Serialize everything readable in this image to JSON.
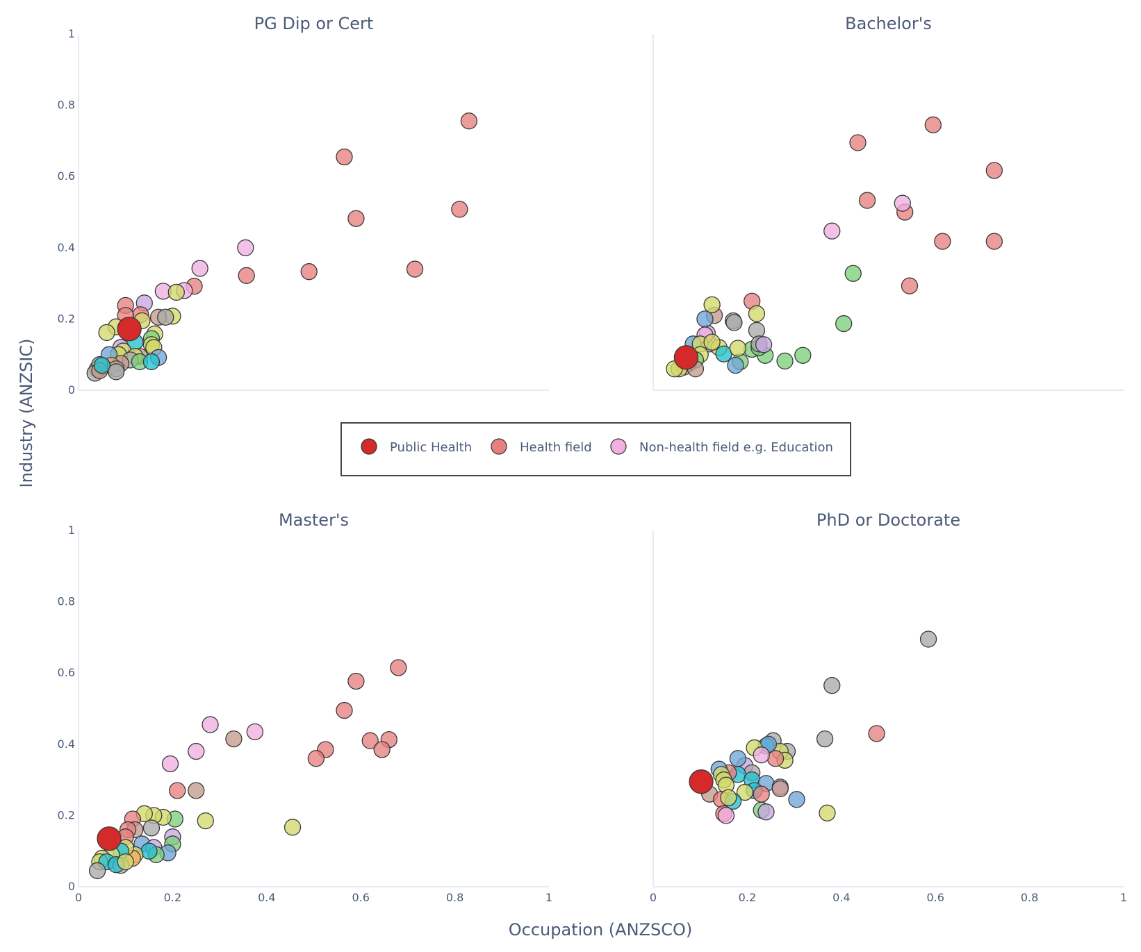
{
  "chart_data": {
    "type": "scatter",
    "ylabel": "Industry (ANZSIC)",
    "xlabel": "Occupation (ANZSCO)",
    "xlim": [
      0,
      1
    ],
    "ylim": [
      0,
      1
    ],
    "ticks": [
      "0",
      "0.2",
      "0.4",
      "0.6",
      "0.8",
      "1"
    ],
    "colors": {
      "public": "#d42a2a",
      "health": "#e88080",
      "nonhealth": "#f0b0e0",
      "yellow": "#d4d86a",
      "gray": "#aaaaaa",
      "blue": "#6ea6d8",
      "cyan": "#26c0d0",
      "green": "#7ccf7c",
      "brown": "#c49a8c",
      "purple": "#c8a8e0",
      "orange": "#f0a860"
    },
    "legend": [
      {
        "label": "Public Health",
        "color": "public"
      },
      {
        "label": "Health field",
        "color": "health"
      },
      {
        "label": "Non-health field e.g. Education",
        "color": "nonhealth"
      }
    ],
    "panels": [
      {
        "title": "PG Dip or Cert",
        "public_health": {
          "x": 0.108,
          "y": 0.172
        },
        "points": [
          [
            0.83,
            0.756,
            "health"
          ],
          [
            0.565,
            0.655,
            "health"
          ],
          [
            0.59,
            0.482,
            "health"
          ],
          [
            0.81,
            0.508,
            "health"
          ],
          [
            0.715,
            0.34,
            "health"
          ],
          [
            0.49,
            0.333,
            "health"
          ],
          [
            0.357,
            0.322,
            "health"
          ],
          [
            0.246,
            0.292,
            "health"
          ],
          [
            0.355,
            0.4,
            "nonhealth"
          ],
          [
            0.258,
            0.342,
            "nonhealth"
          ],
          [
            0.18,
            0.278,
            "nonhealth"
          ],
          [
            0.225,
            0.28,
            "nonhealth"
          ],
          [
            0.208,
            0.275,
            "yellow"
          ],
          [
            0.14,
            0.245,
            "purple"
          ],
          [
            0.1,
            0.238,
            "health"
          ],
          [
            0.132,
            0.212,
            "health"
          ],
          [
            0.1,
            0.21,
            "health"
          ],
          [
            0.2,
            0.208,
            "yellow"
          ],
          [
            0.17,
            0.205,
            "brown"
          ],
          [
            0.185,
            0.205,
            "gray"
          ],
          [
            0.135,
            0.195,
            "yellow"
          ],
          [
            0.08,
            0.178,
            "yellow"
          ],
          [
            0.06,
            0.162,
            "yellow"
          ],
          [
            0.162,
            0.158,
            "yellow"
          ],
          [
            0.155,
            0.145,
            "green"
          ],
          [
            0.155,
            0.128,
            "yellow"
          ],
          [
            0.12,
            0.135,
            "cyan"
          ],
          [
            0.16,
            0.12,
            "yellow"
          ],
          [
            0.09,
            0.12,
            "purple"
          ],
          [
            0.095,
            0.11,
            "yellow"
          ],
          [
            0.085,
            0.1,
            "yellow"
          ],
          [
            0.065,
            0.1,
            "blue"
          ],
          [
            0.13,
            0.095,
            "brown"
          ],
          [
            0.17,
            0.092,
            "blue"
          ],
          [
            0.12,
            0.095,
            "yellow"
          ],
          [
            0.11,
            0.085,
            "gray"
          ],
          [
            0.13,
            0.08,
            "green"
          ],
          [
            0.155,
            0.08,
            "cyan"
          ],
          [
            0.09,
            0.075,
            "brown"
          ],
          [
            0.07,
            0.07,
            "orange"
          ],
          [
            0.08,
            0.06,
            "gray"
          ],
          [
            0.04,
            0.06,
            "yellow"
          ],
          [
            0.05,
            0.065,
            "orange"
          ],
          [
            0.045,
            0.072,
            "gray"
          ],
          [
            0.035,
            0.048,
            "gray"
          ],
          [
            0.045,
            0.055,
            "brown"
          ],
          [
            0.05,
            0.07,
            "cyan"
          ],
          [
            0.08,
            0.052,
            "gray"
          ]
        ]
      },
      {
        "title": "Bachelor's",
        "public_health": {
          "x": 0.07,
          "y": 0.092
        },
        "points": [
          [
            0.595,
            0.745,
            "health"
          ],
          [
            0.435,
            0.695,
            "health"
          ],
          [
            0.725,
            0.617,
            "health"
          ],
          [
            0.455,
            0.533,
            "health"
          ],
          [
            0.535,
            0.5,
            "health"
          ],
          [
            0.615,
            0.418,
            "health"
          ],
          [
            0.725,
            0.418,
            "health"
          ],
          [
            0.545,
            0.293,
            "health"
          ],
          [
            0.53,
            0.525,
            "nonhealth"
          ],
          [
            0.38,
            0.447,
            "nonhealth"
          ],
          [
            0.425,
            0.328,
            "green"
          ],
          [
            0.405,
            0.187,
            "green"
          ],
          [
            0.318,
            0.098,
            "green"
          ],
          [
            0.28,
            0.082,
            "green"
          ],
          [
            0.238,
            0.098,
            "green"
          ],
          [
            0.21,
            0.115,
            "green"
          ],
          [
            0.225,
            0.12,
            "green"
          ],
          [
            0.185,
            0.08,
            "green"
          ],
          [
            0.21,
            0.25,
            "health"
          ],
          [
            0.13,
            0.21,
            "brown"
          ],
          [
            0.125,
            0.24,
            "yellow"
          ],
          [
            0.22,
            0.215,
            "yellow"
          ],
          [
            0.17,
            0.195,
            "gray"
          ],
          [
            0.172,
            0.19,
            "gray"
          ],
          [
            0.22,
            0.168,
            "gray"
          ],
          [
            0.225,
            0.13,
            "gray"
          ],
          [
            0.235,
            0.128,
            "purple"
          ],
          [
            0.115,
            0.16,
            "purple"
          ],
          [
            0.12,
            0.13,
            "gray"
          ],
          [
            0.11,
            0.155,
            "nonhealth"
          ],
          [
            0.14,
            0.12,
            "yellow"
          ],
          [
            0.15,
            0.102,
            "cyan"
          ],
          [
            0.175,
            0.07,
            "blue"
          ],
          [
            0.18,
            0.118,
            "yellow"
          ],
          [
            0.085,
            0.13,
            "blue"
          ],
          [
            0.11,
            0.2,
            "blue"
          ],
          [
            0.1,
            0.13,
            "yellow"
          ],
          [
            0.1,
            0.1,
            "yellow"
          ],
          [
            0.09,
            0.085,
            "green"
          ],
          [
            0.075,
            0.075,
            "cyan"
          ],
          [
            0.065,
            0.065,
            "brown"
          ],
          [
            0.055,
            0.06,
            "yellow"
          ],
          [
            0.045,
            0.06,
            "yellow"
          ],
          [
            0.09,
            0.06,
            "brown"
          ],
          [
            0.125,
            0.135,
            "yellow"
          ]
        ]
      },
      {
        "title": "Master's",
        "public_health": {
          "x": 0.065,
          "y": 0.135
        },
        "points": [
          [
            0.68,
            0.615,
            "health"
          ],
          [
            0.59,
            0.577,
            "health"
          ],
          [
            0.565,
            0.495,
            "health"
          ],
          [
            0.66,
            0.413,
            "health"
          ],
          [
            0.62,
            0.41,
            "health"
          ],
          [
            0.645,
            0.385,
            "health"
          ],
          [
            0.525,
            0.385,
            "health"
          ],
          [
            0.505,
            0.36,
            "health"
          ],
          [
            0.375,
            0.435,
            "nonhealth"
          ],
          [
            0.28,
            0.455,
            "nonhealth"
          ],
          [
            0.25,
            0.38,
            "nonhealth"
          ],
          [
            0.195,
            0.345,
            "nonhealth"
          ],
          [
            0.33,
            0.415,
            "brown"
          ],
          [
            0.455,
            0.167,
            "yellow"
          ],
          [
            0.27,
            0.185,
            "yellow"
          ],
          [
            0.21,
            0.27,
            "health"
          ],
          [
            0.25,
            0.27,
            "brown"
          ],
          [
            0.205,
            0.19,
            "green"
          ],
          [
            0.2,
            0.14,
            "purple"
          ],
          [
            0.18,
            0.195,
            "yellow"
          ],
          [
            0.16,
            0.2,
            "yellow"
          ],
          [
            0.14,
            0.205,
            "yellow"
          ],
          [
            0.115,
            0.19,
            "health"
          ],
          [
            0.155,
            0.165,
            "gray"
          ],
          [
            0.12,
            0.16,
            "brown"
          ],
          [
            0.105,
            0.16,
            "health"
          ],
          [
            0.1,
            0.14,
            "health"
          ],
          [
            0.135,
            0.12,
            "blue"
          ],
          [
            0.16,
            0.11,
            "purple"
          ],
          [
            0.2,
            0.12,
            "green"
          ],
          [
            0.19,
            0.095,
            "blue"
          ],
          [
            0.165,
            0.09,
            "green"
          ],
          [
            0.15,
            0.1,
            "cyan"
          ],
          [
            0.12,
            0.09,
            "yellow"
          ],
          [
            0.115,
            0.08,
            "orange"
          ],
          [
            0.1,
            0.11,
            "yellow"
          ],
          [
            0.09,
            0.1,
            "cyan"
          ],
          [
            0.07,
            0.09,
            "yellow"
          ],
          [
            0.05,
            0.08,
            "yellow"
          ],
          [
            0.045,
            0.07,
            "yellow"
          ],
          [
            0.06,
            0.07,
            "cyan"
          ],
          [
            0.09,
            0.06,
            "gray"
          ],
          [
            0.08,
            0.062,
            "cyan"
          ],
          [
            0.04,
            0.045,
            "gray"
          ],
          [
            0.1,
            0.07,
            "yellow"
          ]
        ]
      },
      {
        "title": "PhD or Doctorate",
        "public_health": {
          "x": 0.102,
          "y": 0.295
        },
        "points": [
          [
            0.585,
            0.695,
            "gray"
          ],
          [
            0.38,
            0.565,
            "gray"
          ],
          [
            0.475,
            0.43,
            "health"
          ],
          [
            0.365,
            0.415,
            "gray"
          ],
          [
            0.37,
            0.207,
            "yellow"
          ],
          [
            0.305,
            0.245,
            "blue"
          ],
          [
            0.255,
            0.41,
            "gray"
          ],
          [
            0.285,
            0.38,
            "gray"
          ],
          [
            0.27,
            0.38,
            "yellow"
          ],
          [
            0.28,
            0.355,
            "yellow"
          ],
          [
            0.26,
            0.36,
            "health"
          ],
          [
            0.24,
            0.395,
            "cyan"
          ],
          [
            0.245,
            0.4,
            "blue"
          ],
          [
            0.215,
            0.39,
            "yellow"
          ],
          [
            0.23,
            0.37,
            "nonhealth"
          ],
          [
            0.195,
            0.34,
            "purple"
          ],
          [
            0.18,
            0.36,
            "blue"
          ],
          [
            0.21,
            0.32,
            "gray"
          ],
          [
            0.18,
            0.315,
            "cyan"
          ],
          [
            0.16,
            0.32,
            "health"
          ],
          [
            0.14,
            0.33,
            "blue"
          ],
          [
            0.145,
            0.315,
            "yellow"
          ],
          [
            0.15,
            0.3,
            "yellow"
          ],
          [
            0.155,
            0.285,
            "yellow"
          ],
          [
            0.21,
            0.3,
            "cyan"
          ],
          [
            0.24,
            0.29,
            "blue"
          ],
          [
            0.215,
            0.27,
            "cyan"
          ],
          [
            0.195,
            0.265,
            "yellow"
          ],
          [
            0.23,
            0.26,
            "health"
          ],
          [
            0.27,
            0.28,
            "purple"
          ],
          [
            0.27,
            0.275,
            "brown"
          ],
          [
            0.12,
            0.26,
            "brown"
          ],
          [
            0.145,
            0.245,
            "health"
          ],
          [
            0.17,
            0.24,
            "cyan"
          ],
          [
            0.15,
            0.205,
            "health"
          ],
          [
            0.155,
            0.2,
            "nonhealth"
          ],
          [
            0.23,
            0.215,
            "green"
          ],
          [
            0.24,
            0.21,
            "purple"
          ],
          [
            0.16,
            0.25,
            "yellow"
          ]
        ]
      }
    ]
  }
}
